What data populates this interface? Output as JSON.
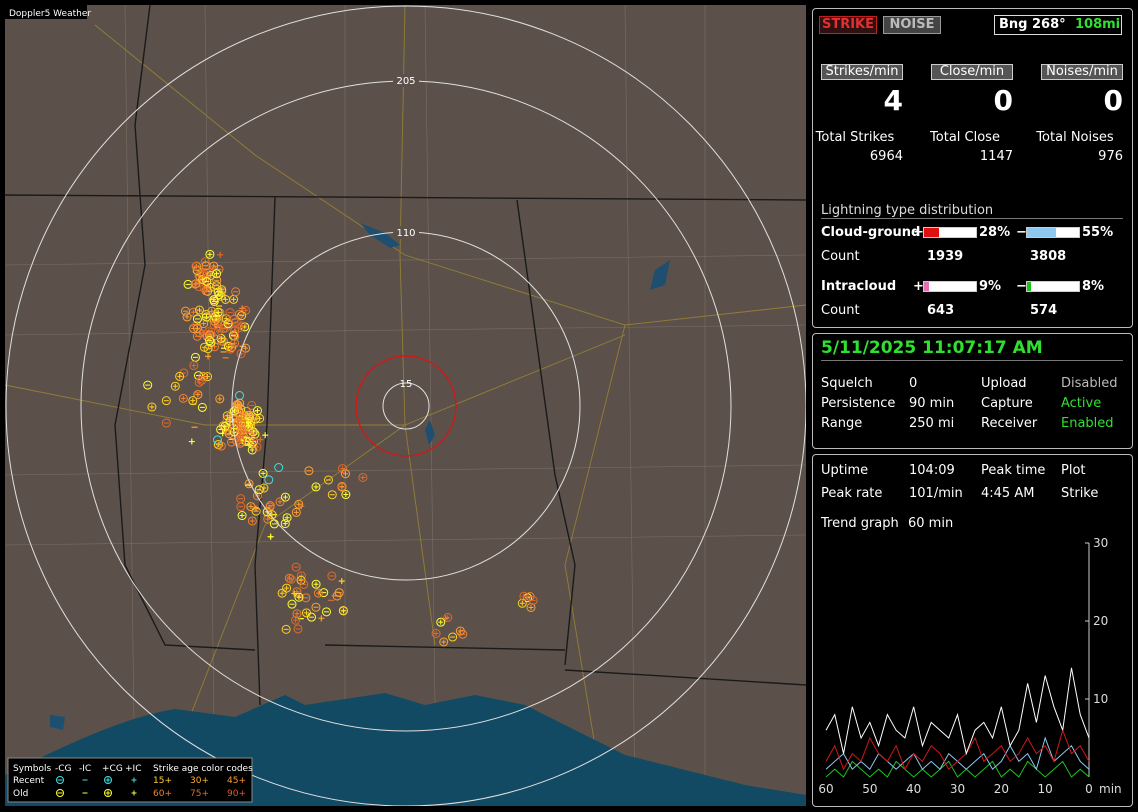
{
  "map": {
    "title": "Doppler5 Weather",
    "rings": [
      "205",
      "110",
      "15"
    ],
    "legend": {
      "header": [
        "Symbols",
        "-CG",
        "-IC",
        "+CG",
        "+IC",
        "Strike age color codes"
      ],
      "rows": [
        {
          "label": "Recent",
          "ages": [
            "15+",
            "30+",
            "45+"
          ]
        },
        {
          "label": "Old",
          "ages": [
            "60+",
            "75+",
            "90+"
          ]
        }
      ]
    }
  },
  "status": {
    "strike": "STRIKE",
    "noise": "NOISE",
    "bearing": "Bng 268°",
    "distance": "108mi"
  },
  "rates": [
    {
      "label": "Strikes/min",
      "value": 4,
      "total_label": "Total Strikes",
      "total": 6964
    },
    {
      "label": "Close/min",
      "value": 0,
      "total_label": "Total Close",
      "total": 1147
    },
    {
      "label": "Noises/min",
      "value": 0,
      "total_label": "Total Noises",
      "total": 976
    }
  ],
  "distribution": {
    "title": "Lightning type distribution",
    "rows": [
      {
        "label": "Cloud-ground",
        "count_label": "Count",
        "pos": {
          "sign": "+",
          "pct": {
            "value": 28,
            "label": "28%"
          },
          "color": "#e01010",
          "count": 1939
        },
        "neg": {
          "sign": "−",
          "pct": {
            "value": 55,
            "label": "55%"
          },
          "color": "#8cc8f0",
          "count": 3808
        }
      },
      {
        "label": "Intracloud",
        "count_label": "Count",
        "pos": {
          "sign": "+",
          "pct": {
            "value": 9,
            "label": "9%"
          },
          "color": "#e070b0",
          "count": 643
        },
        "neg": {
          "sign": "−",
          "pct": {
            "value": 8,
            "label": "8%"
          },
          "color": "#20c020",
          "count": 574
        }
      }
    ]
  },
  "settings": {
    "datetime": "5/11/2025 11:07:17 AM",
    "rows": [
      [
        "Squelch",
        "0",
        "Upload",
        "Disabled"
      ],
      [
        "Persistence",
        "90 min",
        "Capture",
        "Active"
      ],
      [
        "Range",
        "250 mi",
        "Receiver",
        "Enabled"
      ]
    ]
  },
  "stats": {
    "rows": [
      [
        "Uptime",
        "104:09",
        "Peak time",
        "Plot"
      ],
      [
        "Peak rate",
        "101/min",
        "4:45 AM",
        "Strike"
      ]
    ],
    "trend_label": "Trend graph",
    "trend_span": "60 min"
  },
  "trend": {
    "type": "line",
    "xlim": [
      60,
      0
    ],
    "ylim": [
      0,
      30
    ],
    "xticks": [
      60,
      50,
      40,
      30,
      20,
      10,
      0
    ],
    "yticks": [
      10,
      20,
      30
    ],
    "xlabel": "min",
    "x": [
      60,
      58,
      56,
      54,
      52,
      50,
      48,
      46,
      44,
      42,
      40,
      38,
      36,
      34,
      32,
      30,
      28,
      26,
      24,
      22,
      20,
      18,
      16,
      14,
      12,
      10,
      8,
      6,
      4,
      2,
      0
    ],
    "series": [
      {
        "color": "#ffffff",
        "values": [
          6,
          8,
          3,
          9,
          5,
          7,
          4,
          8,
          6,
          5,
          9,
          4,
          7,
          6,
          5,
          8,
          3,
          6,
          7,
          5,
          9,
          4,
          6,
          12,
          7,
          13,
          9,
          6,
          14,
          8,
          5
        ]
      },
      {
        "color": "#d01818",
        "values": [
          2,
          4,
          1,
          3,
          2,
          5,
          3,
          2,
          4,
          1,
          3,
          2,
          4,
          3,
          1,
          2,
          3,
          5,
          2,
          3,
          4,
          2,
          3,
          5,
          3,
          4,
          2,
          6,
          3,
          4,
          2
        ]
      },
      {
        "color": "#8cc8f0",
        "values": [
          1,
          2,
          3,
          1,
          2,
          1,
          3,
          2,
          1,
          2,
          3,
          1,
          2,
          1,
          3,
          2,
          1,
          2,
          3,
          1,
          2,
          4,
          2,
          3,
          1,
          5,
          2,
          3,
          4,
          2,
          1
        ]
      },
      {
        "color": "#20c020",
        "values": [
          0,
          1,
          0,
          2,
          1,
          0,
          1,
          0,
          2,
          1,
          0,
          1,
          0,
          1,
          2,
          0,
          1,
          0,
          1,
          2,
          0,
          1,
          0,
          2,
          1,
          0,
          1,
          2,
          0,
          1,
          0
        ]
      }
    ]
  }
}
